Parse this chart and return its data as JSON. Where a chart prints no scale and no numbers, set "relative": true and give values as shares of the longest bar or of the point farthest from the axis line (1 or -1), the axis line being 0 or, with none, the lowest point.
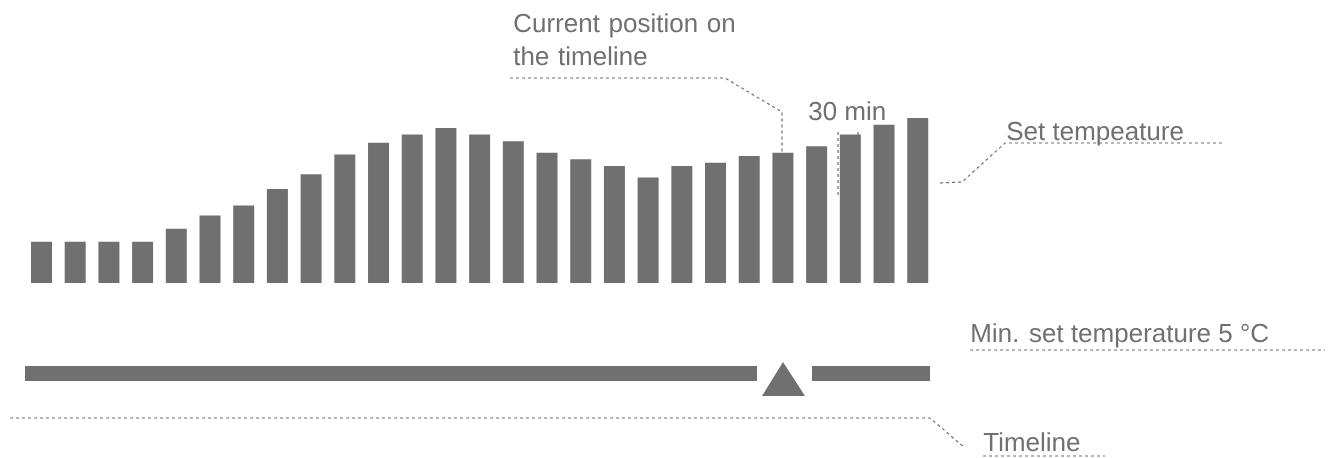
{
  "chart_data": {
    "type": "bar",
    "relative": true,
    "categories": [
      null,
      null,
      null,
      null,
      null,
      null,
      null,
      null,
      null,
      null,
      null,
      null,
      null,
      null,
      null,
      null,
      null,
      null,
      null,
      null,
      null,
      null,
      null,
      null,
      null,
      null,
      null
    ],
    "values": [
      0.25,
      0.25,
      0.25,
      0.25,
      0.33,
      0.41,
      0.47,
      0.57,
      0.66,
      0.78,
      0.85,
      0.9,
      0.94,
      0.9,
      0.86,
      0.79,
      0.75,
      0.71,
      0.64,
      0.71,
      0.73,
      0.77,
      0.79,
      0.83,
      0.9,
      0.96,
      1
    ],
    "color": "#707070",
    "annotations": [
      "Current position on the timeline",
      "30 min",
      "Set tempeature",
      "Min. set temperature 5 °C",
      "Timeline"
    ]
  }
}
